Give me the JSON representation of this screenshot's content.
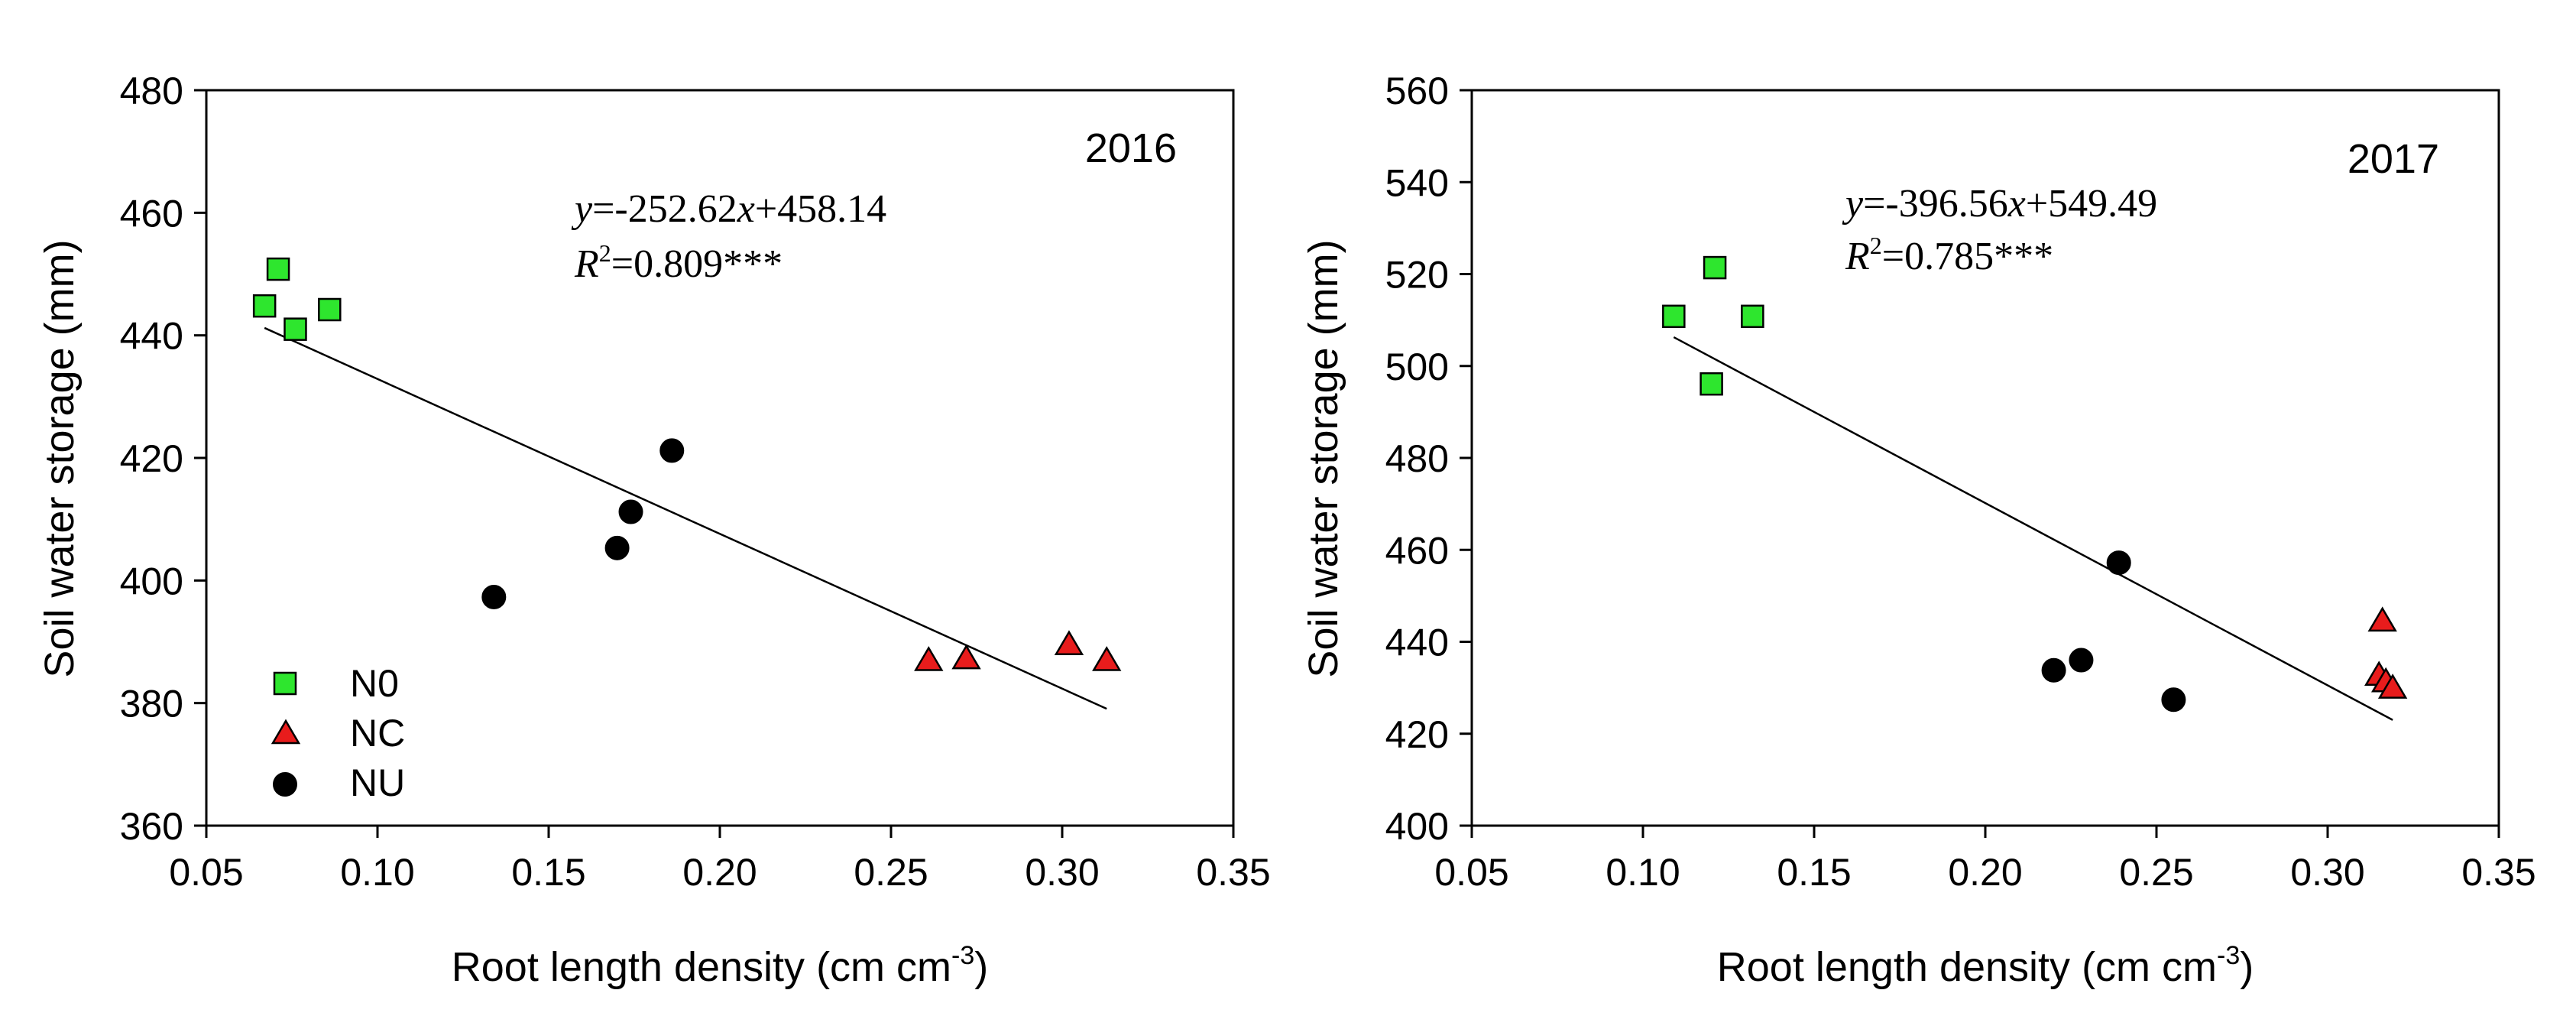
{
  "chart_data": [
    {
      "type": "scatter",
      "panel_label": "2016",
      "xlabel": "Root length density (cm cm",
      "xlabel_sup": "-3",
      "xlabel_suffix": ")",
      "ylabel": "Soil water storage (mm)",
      "xlim": [
        0.05,
        0.35
      ],
      "ylim": [
        360,
        480
      ],
      "xticks": [
        0.05,
        0.1,
        0.15,
        0.2,
        0.25,
        0.3,
        0.35
      ],
      "xtick_labels": [
        "0.05",
        "0.10",
        "0.15",
        "0.20",
        "0.25",
        "0.30",
        "0.35"
      ],
      "yticks": [
        360,
        380,
        400,
        420,
        440,
        460,
        480
      ],
      "ytick_labels": [
        "360",
        "380",
        "400",
        "420",
        "440",
        "460",
        "480"
      ],
      "equation": {
        "y": "y",
        "eq_rest": "=-252.62",
        "x": "x",
        "eq_tail": "+458.14",
        "r": "R",
        "r_sup": "2",
        "r_rest": "=0.809***"
      },
      "fit": {
        "slope": -252.62,
        "intercept": 458.14,
        "x_range": [
          0.067,
          0.313
        ]
      },
      "legend": {
        "position": "bottom-left",
        "entries": [
          {
            "label": "N0",
            "marker": "square",
            "color": "#2ee62e"
          },
          {
            "label": "NC",
            "marker": "triangle",
            "color": "#e81c1c"
          },
          {
            "label": "NU",
            "marker": "circle",
            "color": "#000000"
          }
        ]
      },
      "series": [
        {
          "name": "N0",
          "marker": "square",
          "color": "#2ee62e",
          "x": [
            0.067,
            0.071,
            0.076,
            0.086
          ],
          "y": [
            444.8,
            450.8,
            441.0,
            444.2
          ]
        },
        {
          "name": "NC",
          "marker": "triangle",
          "color": "#e81c1c",
          "x": [
            0.261,
            0.272,
            0.302,
            0.313
          ],
          "y": [
            387.0,
            387.3,
            389.6,
            387.0
          ]
        },
        {
          "name": "NU",
          "marker": "circle",
          "color": "#000000",
          "x": [
            0.134,
            0.17,
            0.174,
            0.186
          ],
          "y": [
            397.3,
            405.3,
            411.2,
            421.2
          ]
        }
      ]
    },
    {
      "type": "scatter",
      "panel_label": "2017",
      "xlabel": "Root length density (cm cm",
      "xlabel_sup": "-3",
      "xlabel_suffix": ")",
      "ylabel": "Soil water storage (mm)",
      "xlim": [
        0.05,
        0.35
      ],
      "ylim": [
        400,
        560
      ],
      "xticks": [
        0.05,
        0.1,
        0.15,
        0.2,
        0.25,
        0.3,
        0.35
      ],
      "xtick_labels": [
        "0.05",
        "0.10",
        "0.15",
        "0.20",
        "0.25",
        "0.30",
        "0.35"
      ],
      "yticks": [
        400,
        420,
        440,
        460,
        480,
        500,
        520,
        540,
        560
      ],
      "ytick_labels": [
        "400",
        "420",
        "440",
        "460",
        "480",
        "500",
        "520",
        "540",
        "560"
      ],
      "equation": {
        "y": "y",
        "eq_rest": "=-396.56",
        "x": "x",
        "eq_tail": "+549.49",
        "r": "R",
        "r_sup": "2",
        "r_rest": "=0.785***"
      },
      "fit": {
        "slope": -396.56,
        "intercept": 549.49,
        "x_range": [
          0.109,
          0.319
        ]
      },
      "series": [
        {
          "name": "N0",
          "marker": "square",
          "color": "#2ee62e",
          "x": [
            0.109,
            0.12,
            0.121,
            0.132
          ],
          "y": [
            510.8,
            496.1,
            521.4,
            510.8
          ]
        },
        {
          "name": "NC",
          "marker": "triangle",
          "color": "#e81c1c",
          "x": [
            0.315,
            0.316,
            0.317,
            0.319
          ],
          "y": [
            432.8,
            444.6,
            431.4,
            430.0
          ]
        },
        {
          "name": "NU",
          "marker": "circle",
          "color": "#000000",
          "x": [
            0.22,
            0.228,
            0.239,
            0.255
          ],
          "y": [
            433.8,
            436.0,
            457.2,
            427.4
          ]
        }
      ]
    }
  ]
}
